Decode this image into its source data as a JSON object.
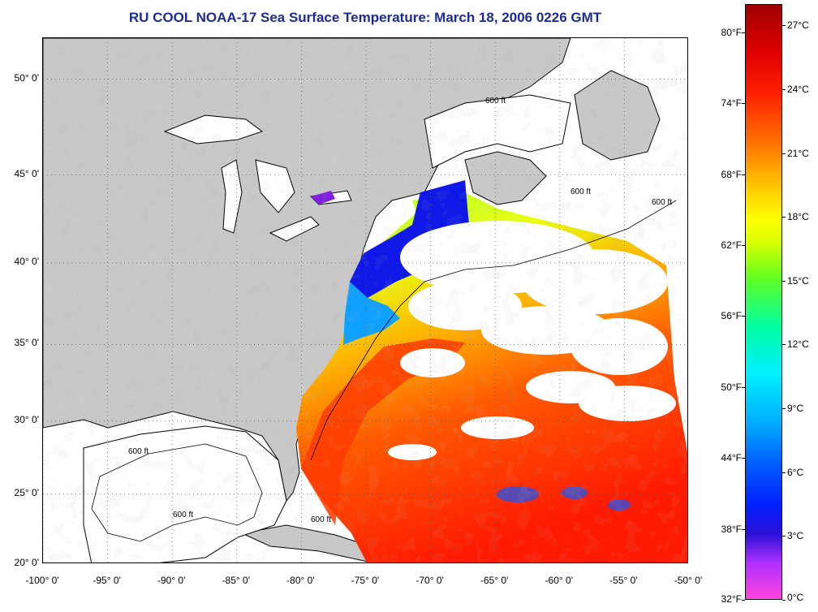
{
  "title": "RU COOL  NOAA-17  Sea Surface Temperature:  March 18, 2006 0226 GMT",
  "map": {
    "lon_range": [
      -100,
      -50
    ],
    "lat_range": [
      20,
      52
    ],
    "lat_labels": [
      "50° 0'",
      "45° 0'",
      "40° 0'",
      "35° 0'",
      "30° 0'",
      "25° 0'",
      "20° 0'"
    ],
    "lon_labels": [
      "-100° 0'",
      "-95° 0'",
      "-90° 0'",
      "-85° 0'",
      "-80° 0'",
      "-75° 0'",
      "-70° 0'",
      "-65° 0'",
      "-60° 0'",
      "-55° 0'",
      "-50° 0'"
    ],
    "contour_label": "600 ft",
    "colors": {
      "land": "#c8c8c8",
      "water_no_data": "#ffffff",
      "coast": "#000000"
    }
  },
  "colorbar": {
    "fahrenheit_labels": [
      "80°F",
      "74°F",
      "68°F",
      "62°F",
      "56°F",
      "50°F",
      "44°F",
      "38°F",
      "32°F"
    ],
    "celsius_labels": [
      "27°C",
      "24°C",
      "21°C",
      "18°C",
      "15°C",
      "12°C",
      "9°C",
      "6°C",
      "3°C",
      "0°C"
    ],
    "min_c": 0,
    "max_c": 28
  }
}
